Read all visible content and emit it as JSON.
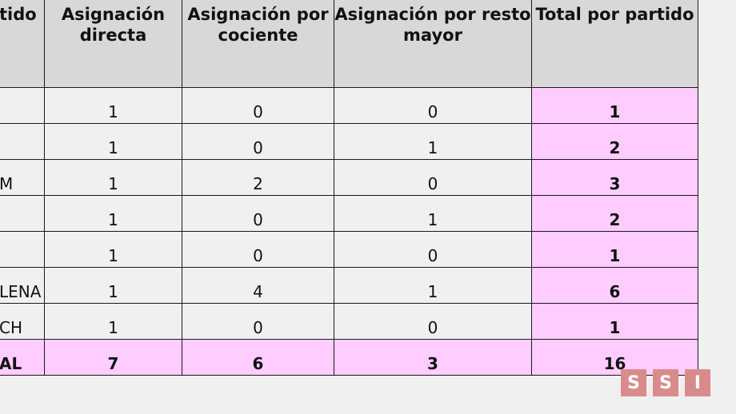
{
  "table": {
    "headers": {
      "partido": "tido",
      "asignacion_directa": "Asignación directa",
      "asignacion_cociente": "Asignación por cociente",
      "asignacion_resto": "Asignación por resto mayor",
      "total_partido": "Total por partido"
    },
    "rows": [
      {
        "partido": "",
        "directa": "1",
        "cociente": "0",
        "resto": "0",
        "total": "1"
      },
      {
        "partido": "",
        "directa": "1",
        "cociente": "0",
        "resto": "1",
        "total": "2"
      },
      {
        "partido": "M",
        "directa": "1",
        "cociente": "2",
        "resto": "0",
        "total": "3"
      },
      {
        "partido": "",
        "directa": "1",
        "cociente": "0",
        "resto": "1",
        "total": "2"
      },
      {
        "partido": "",
        "directa": "1",
        "cociente": "0",
        "resto": "0",
        "total": "1"
      },
      {
        "partido": "LENA",
        "directa": "1",
        "cociente": "4",
        "resto": "1",
        "total": "6"
      },
      {
        "partido": "CH",
        "directa": "1",
        "cociente": "0",
        "resto": "0",
        "total": "1"
      }
    ],
    "total_row": {
      "partido": "AL",
      "directa": "7",
      "cociente": "6",
      "resto": "3",
      "total": "16"
    }
  },
  "logo": {
    "letters": [
      "S",
      "S",
      "I"
    ],
    "color": "#d98b8b"
  }
}
